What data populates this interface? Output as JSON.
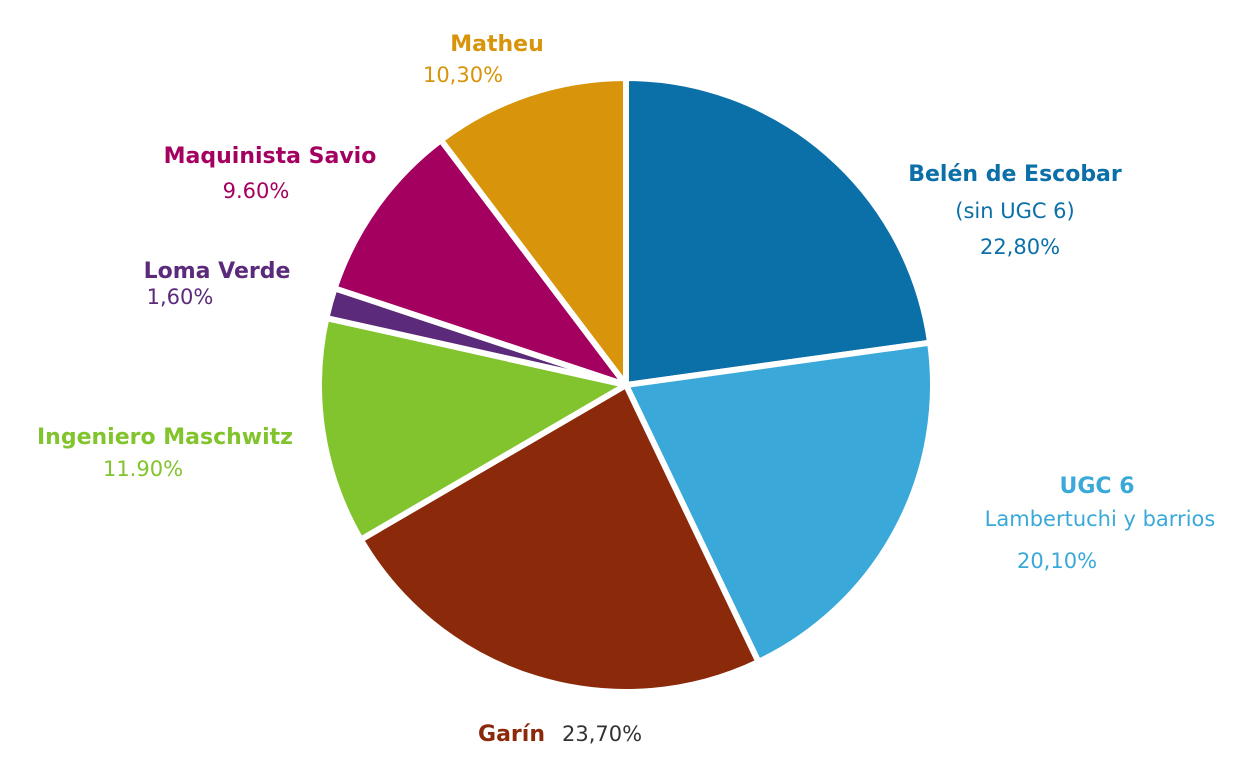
{
  "chart_data": {
    "type": "pie",
    "categories": [
      "Belén de Escobar",
      "UGC 6",
      "Garín",
      "Ingeniero Maschwitz",
      "Loma Verde",
      "Maquinista Savio",
      "Matheu"
    ],
    "category_notes": [
      "(sin UGC 6)",
      "Lambertuchi y barrios",
      null,
      null,
      null,
      null,
      null
    ],
    "values": [
      22.8,
      20.1,
      23.7,
      11.9,
      1.6,
      9.6,
      10.3
    ],
    "value_labels": [
      "22,80%",
      "20,10%",
      "23,70%",
      "11.90%",
      "1,60%",
      "9.60%",
      "10,30%"
    ],
    "colors": [
      "#0b6fa8",
      "#3aa9d9",
      "#8b2a0a",
      "#82c42d",
      "#5b2a7a",
      "#a4005f",
      "#d8940a"
    ]
  }
}
